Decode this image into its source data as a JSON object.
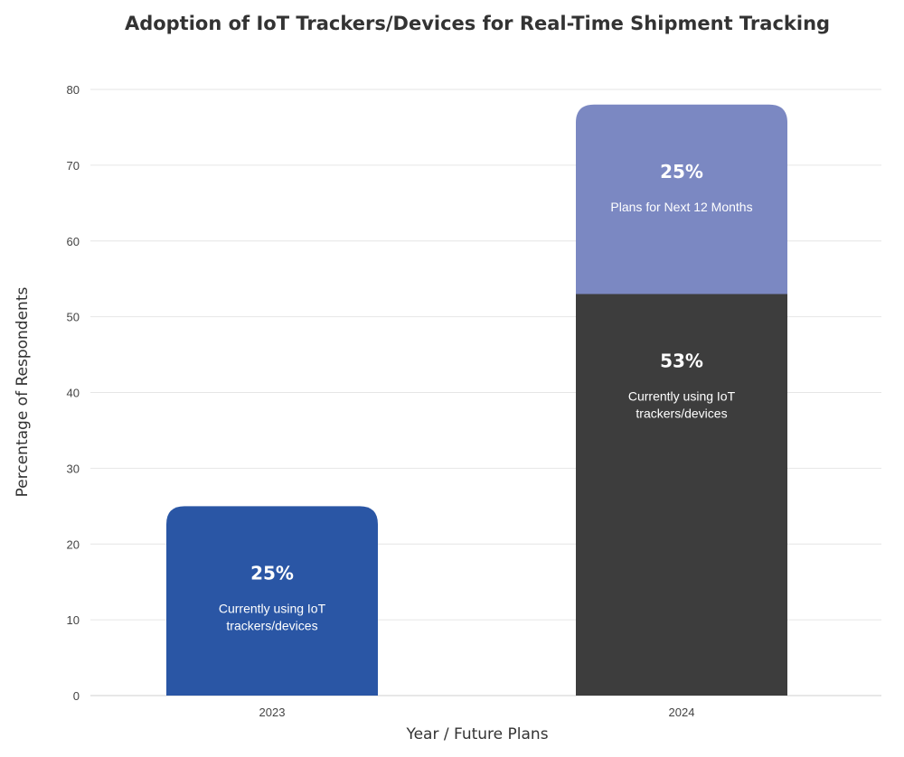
{
  "chart_data": {
    "type": "stacked-bar",
    "title": "Adoption of IoT Trackers/Devices for Real-Time Shipment Tracking",
    "xlabel": "Year / Future Plans",
    "ylabel": "Percentage of Respondents",
    "ylim": [
      0,
      80
    ],
    "yticks": [
      0,
      10,
      20,
      30,
      40,
      50,
      60,
      70,
      80
    ],
    "grid": true,
    "categories": [
      "2023",
      "2024"
    ],
    "bars": [
      {
        "category": "2023",
        "segments": [
          {
            "value": 25,
            "label": "25%",
            "description": [
              "Currently using IoT",
              "trackers/devices"
            ],
            "color": "#2a56a5"
          }
        ]
      },
      {
        "category": "2024",
        "segments": [
          {
            "value": 53,
            "label": "53%",
            "description": [
              "Currently using IoT",
              "trackers/devices"
            ],
            "color": "#3d3d3d"
          },
          {
            "value": 25,
            "label": "25%",
            "description": [
              "Plans for Next 12 Months"
            ],
            "color": "#7b88c2"
          }
        ]
      }
    ]
  }
}
